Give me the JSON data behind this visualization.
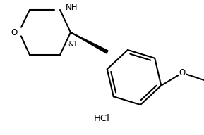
{
  "bg_color": "#ffffff",
  "line_color": "#000000",
  "line_width": 1.5,
  "text_color": "#000000",
  "hcl_text": "HCl",
  "nh_text": "NH",
  "o_morph_text": "O",
  "o_ethoxy_text": "O",
  "stereo_label": "&1",
  "label_fontsize": 8.5,
  "small_fontsize": 7.0,
  "hcl_fontsize": 9.5
}
